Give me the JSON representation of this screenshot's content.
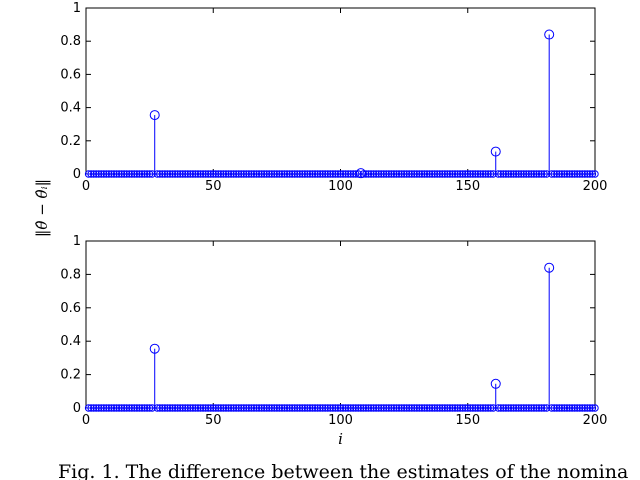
{
  "figure": {
    "ylabel": "‖θ̂ − θ̂ᵢ‖",
    "caption": "Fig. 1.  The difference between the estimates of the nomina"
  },
  "chart_data": [
    {
      "type": "stem",
      "xlabel": "",
      "ylabel": "‖θ̂ − θ̂ᵢ‖",
      "xlim": [
        0,
        200
      ],
      "ylim": [
        0,
        1
      ],
      "xticks": [
        "0",
        "50",
        "100",
        "150",
        "200"
      ],
      "yticks": [
        "0",
        "0.2",
        "0.4",
        "0.6",
        "0.8",
        "1"
      ],
      "n_points": 200,
      "color": "#0000ff",
      "baseline_value": 0,
      "peaks": [
        {
          "x": 27,
          "y": 0.355
        },
        {
          "x": 108,
          "y": 0.005
        },
        {
          "x": 161,
          "y": 0.135
        },
        {
          "x": 182,
          "y": 0.84
        }
      ]
    },
    {
      "type": "stem",
      "xlabel": "i",
      "ylabel": "",
      "xlim": [
        0,
        200
      ],
      "ylim": [
        0,
        1
      ],
      "xticks": [
        "0",
        "50",
        "100",
        "150",
        "200"
      ],
      "yticks": [
        "0",
        "0.2",
        "0.4",
        "0.6",
        "0.8",
        "1"
      ],
      "n_points": 200,
      "color": "#0000ff",
      "baseline_value": 0,
      "peaks": [
        {
          "x": 27,
          "y": 0.355
        },
        {
          "x": 161,
          "y": 0.145
        },
        {
          "x": 182,
          "y": 0.84
        }
      ]
    }
  ]
}
